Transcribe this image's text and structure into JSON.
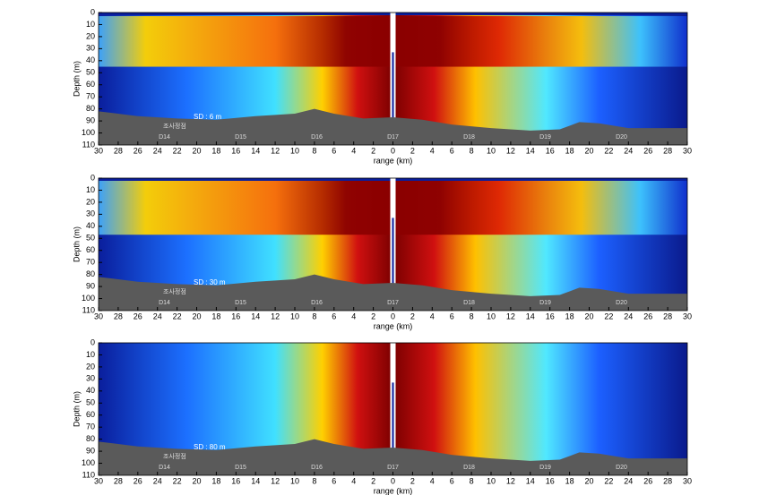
{
  "chart_data": [
    {
      "type": "heatmap",
      "annotation": "SD : 6 m",
      "station_caption": "조사정점",
      "stations": [
        "D14",
        "D15",
        "D16",
        "D17",
        "D18",
        "D19",
        "D20"
      ],
      "xlabel": "range (km)",
      "ylabel": "Depth (m)",
      "xlim": [
        -30,
        30
      ],
      "ylim": [
        0,
        110
      ],
      "y_inverted": true,
      "xticks": [
        {
          "value": -30,
          "label": "30"
        },
        {
          "value": -28,
          "label": "28"
        },
        {
          "value": -26,
          "label": "26"
        },
        {
          "value": -24,
          "label": "24"
        },
        {
          "value": -22,
          "label": "22"
        },
        {
          "value": -20,
          "label": "20"
        },
        {
          "value": -18,
          "label": "18"
        },
        {
          "value": -16,
          "label": "16"
        },
        {
          "value": -14,
          "label": "14"
        },
        {
          "value": -12,
          "label": "12"
        },
        {
          "value": -10,
          "label": "10"
        },
        {
          "value": -8,
          "label": "8"
        },
        {
          "value": -6,
          "label": "6"
        },
        {
          "value": -4,
          "label": "4"
        },
        {
          "value": -2,
          "label": "2"
        },
        0,
        2,
        4,
        6,
        8,
        10,
        12,
        14,
        16,
        18,
        20,
        22,
        24,
        26,
        28,
        30
      ],
      "yticks": [
        0,
        10,
        20,
        30,
        40,
        50,
        60,
        70,
        80,
        90,
        100,
        110
      ]
    },
    {
      "type": "heatmap",
      "annotation": "SD : 30 m",
      "station_caption": "조사정점",
      "stations": [
        "D14",
        "D15",
        "D16",
        "D17",
        "D18",
        "D19",
        "D20"
      ],
      "xlabel": "range (km)",
      "ylabel": "Depth (m)",
      "xlim": [
        -30,
        30
      ],
      "ylim": [
        0,
        110
      ],
      "y_inverted": true,
      "xticks": [
        {
          "value": -30,
          "label": "30"
        },
        {
          "value": -28,
          "label": "28"
        },
        {
          "value": -26,
          "label": "26"
        },
        {
          "value": -24,
          "label": "24"
        },
        {
          "value": -22,
          "label": "22"
        },
        {
          "value": -20,
          "label": "20"
        },
        {
          "value": -18,
          "label": "18"
        },
        {
          "value": -16,
          "label": "16"
        },
        {
          "value": -14,
          "label": "14"
        },
        {
          "value": -12,
          "label": "12"
        },
        {
          "value": -10,
          "label": "10"
        },
        {
          "value": -8,
          "label": "8"
        },
        {
          "value": -6,
          "label": "6"
        },
        {
          "value": -4,
          "label": "4"
        },
        {
          "value": -2,
          "label": "2"
        },
        0,
        2,
        4,
        6,
        8,
        10,
        12,
        14,
        16,
        18,
        20,
        22,
        24,
        26,
        28,
        30
      ],
      "yticks": [
        0,
        10,
        20,
        30,
        40,
        50,
        60,
        70,
        80,
        90,
        100,
        110
      ]
    },
    {
      "type": "heatmap",
      "annotation": "SD : 80 m",
      "station_caption": "조사정점",
      "stations": [
        "D14",
        "D15",
        "D16",
        "D17",
        "D18",
        "D19",
        "D20"
      ],
      "xlabel": "range (km)",
      "ylabel": "Depth (m)",
      "xlim": [
        -30,
        30
      ],
      "ylim": [
        0,
        110
      ],
      "y_inverted": true,
      "xticks": [
        {
          "value": -30,
          "label": "30"
        },
        {
          "value": -28,
          "label": "28"
        },
        {
          "value": -26,
          "label": "26"
        },
        {
          "value": -24,
          "label": "24"
        },
        {
          "value": -22,
          "label": "22"
        },
        {
          "value": -20,
          "label": "20"
        },
        {
          "value": -18,
          "label": "18"
        },
        {
          "value": -16,
          "label": "16"
        },
        {
          "value": -14,
          "label": "14"
        },
        {
          "value": -12,
          "label": "12"
        },
        {
          "value": -10,
          "label": "10"
        },
        {
          "value": -8,
          "label": "8"
        },
        {
          "value": -6,
          "label": "6"
        },
        {
          "value": -4,
          "label": "4"
        },
        {
          "value": -2,
          "label": "2"
        },
        0,
        2,
        4,
        6,
        8,
        10,
        12,
        14,
        16,
        18,
        20,
        22,
        24,
        26,
        28,
        30
      ],
      "yticks": [
        0,
        10,
        20,
        30,
        40,
        50,
        60,
        70,
        80,
        90,
        100,
        110
      ]
    }
  ]
}
